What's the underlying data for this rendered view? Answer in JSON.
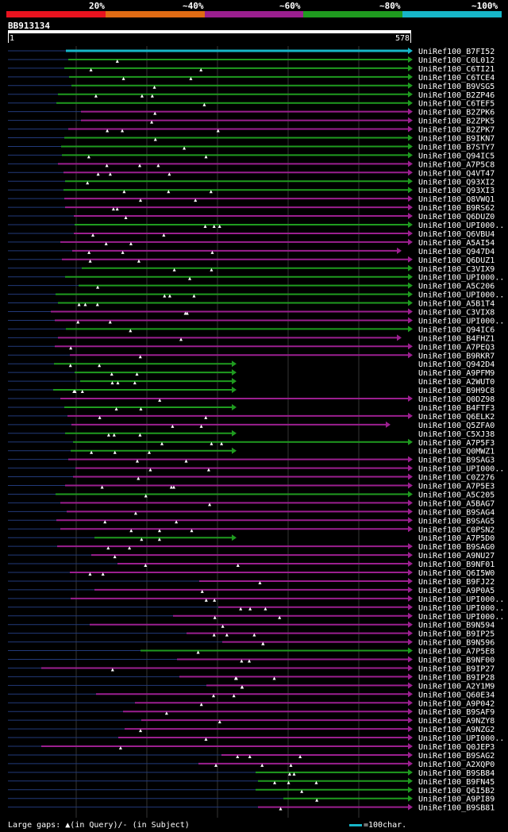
{
  "legend": {
    "labels": [
      "20%",
      "~40%",
      "~60%",
      "~80%",
      "~100%"
    ],
    "colors": [
      "#e8131f",
      "#e06b14",
      "#9b1f8f",
      "#1f9b1f",
      "#17b6c8"
    ]
  },
  "query": {
    "id": "BB913134",
    "start": "1",
    "end": "578"
  },
  "hits": [
    {
      "label": "UniRef100_B7FI52",
      "color": "cyan"
    },
    {
      "label": "UniRef100_C0L012",
      "color": "green"
    },
    {
      "label": "UniRef100_C6TI21",
      "color": "green"
    },
    {
      "label": "UniRef100_C6TCE4",
      "color": "green"
    },
    {
      "label": "UniRef100_B9VSG5",
      "color": "green"
    },
    {
      "label": "UniRef100_B2ZP46",
      "color": "green"
    },
    {
      "label": "UniRef100_C6TEF5",
      "color": "green"
    },
    {
      "label": "UniRef100_B2ZPK6",
      "color": "purple"
    },
    {
      "label": "UniRef100_B2ZPK5",
      "color": "purple"
    },
    {
      "label": "UniRef100_B2ZPK7",
      "color": "purple"
    },
    {
      "label": "UniRef100_B9IKN7",
      "color": "green"
    },
    {
      "label": "UniRef100_B7STY7",
      "color": "green"
    },
    {
      "label": "UniRef100_Q94IC5",
      "color": "green"
    },
    {
      "label": "UniRef100_A7P5C8",
      "color": "purple"
    },
    {
      "label": "UniRef100_Q4VT47",
      "color": "purple"
    },
    {
      "label": "UniRef100_Q93XI2",
      "color": "green"
    },
    {
      "label": "UniRef100_Q93XI3",
      "color": "green"
    },
    {
      "label": "UniRef100_Q8VWQ1",
      "color": "purple"
    },
    {
      "label": "UniRef100_B9RS62",
      "color": "purple"
    },
    {
      "label": "UniRef100_Q6DUZ0",
      "color": "purple"
    },
    {
      "label": "UniRef100_UPI000..",
      "color": "green"
    },
    {
      "label": "UniRef100_Q6VBU4",
      "color": "purple"
    },
    {
      "label": "UniRef100_A5AI54",
      "color": "purple"
    },
    {
      "label": "UniRef100_Q947D4",
      "color": "purple"
    },
    {
      "label": "UniRef100_Q6DUZ1",
      "color": "purple"
    },
    {
      "label": "UniRef100_C3VIX9",
      "color": "green"
    },
    {
      "label": "UniRef100_UPI000..",
      "color": "green"
    },
    {
      "label": "UniRef100_A5C206",
      "color": "green"
    },
    {
      "label": "UniRef100_UPI000..",
      "color": "green"
    },
    {
      "label": "UniRef100_A5B1T4",
      "color": "green"
    },
    {
      "label": "UniRef100_C3VIX8",
      "color": "purple"
    },
    {
      "label": "UniRef100_UPI000..",
      "color": "purple"
    },
    {
      "label": "UniRef100_Q94IC6",
      "color": "green"
    },
    {
      "label": "UniRef100_B4FHZ1",
      "color": "purple"
    },
    {
      "label": "UniRef100_A7PEQ3",
      "color": "purple"
    },
    {
      "label": "UniRef100_B9RKR7",
      "color": "purple"
    },
    {
      "label": "UniRef100_Q942D4",
      "color": "green"
    },
    {
      "label": "UniRef100_A9PFM9",
      "color": "green"
    },
    {
      "label": "UniRef100_A2WUT0",
      "color": "green"
    },
    {
      "label": "UniRef100_B9H9C8",
      "color": "green"
    },
    {
      "label": "UniRef100_Q0DZ98",
      "color": "purple"
    },
    {
      "label": "UniRef100_B4FTF3",
      "color": "green"
    },
    {
      "label": "UniRef100_Q6ELK2",
      "color": "purple"
    },
    {
      "label": "UniRef100_Q5ZFA0",
      "color": "purple"
    },
    {
      "label": "UniRef100_C5XJ38",
      "color": "green"
    },
    {
      "label": "UniRef100_A7P5F3",
      "color": "green"
    },
    {
      "label": "UniRef100_Q0MWZ1",
      "color": "green"
    },
    {
      "label": "UniRef100_B9SAG3",
      "color": "purple"
    },
    {
      "label": "UniRef100_UPI000..",
      "color": "purple"
    },
    {
      "label": "UniRef100_C0Z276",
      "color": "purple"
    },
    {
      "label": "UniRef100_A7P5E3",
      "color": "purple"
    },
    {
      "label": "UniRef100_A5C205",
      "color": "green"
    },
    {
      "label": "UniRef100_A5BAG7",
      "color": "purple"
    },
    {
      "label": "UniRef100_B9SAG4",
      "color": "purple"
    },
    {
      "label": "UniRef100_B9SAG5",
      "color": "purple"
    },
    {
      "label": "UniRef100_C0PSN2",
      "color": "purple"
    },
    {
      "label": "UniRef100_A7P5D0",
      "color": "green"
    },
    {
      "label": "UniRef100_B9SAG0",
      "color": "purple"
    },
    {
      "label": "UniRef100_A9NU27",
      "color": "purple"
    },
    {
      "label": "UniRef100_B9NF01",
      "color": "purple"
    },
    {
      "label": "UniRef100_Q6I5W0",
      "color": "purple"
    },
    {
      "label": "UniRef100_B9FJ22",
      "color": "purple"
    },
    {
      "label": "UniRef100_A9P0A5",
      "color": "purple"
    },
    {
      "label": "UniRef100_UPI000..",
      "color": "purple"
    },
    {
      "label": "UniRef100_UPI000..",
      "color": "purple"
    },
    {
      "label": "UniRef100_UPI000..",
      "color": "purple"
    },
    {
      "label": "UniRef100_B9N594",
      "color": "purple"
    },
    {
      "label": "UniRef100_B9IP25",
      "color": "purple"
    },
    {
      "label": "UniRef100_B9N596",
      "color": "purple"
    },
    {
      "label": "UniRef100_A7P5E8",
      "color": "green"
    },
    {
      "label": "UniRef100_B9NF00",
      "color": "purple"
    },
    {
      "label": "UniRef100_B9IP27",
      "color": "purple"
    },
    {
      "label": "UniRef100_B9IP28",
      "color": "purple"
    },
    {
      "label": "UniRef100_A2Y1M9",
      "color": "purple"
    },
    {
      "label": "UniRef100_Q60E34",
      "color": "purple"
    },
    {
      "label": "UniRef100_A9P042",
      "color": "purple"
    },
    {
      "label": "UniRef100_B9SAF9",
      "color": "purple"
    },
    {
      "label": "UniRef100_A9NZY8",
      "color": "purple"
    },
    {
      "label": "UniRef100_A9NZG2",
      "color": "purple"
    },
    {
      "label": "UniRef100_UPI000..",
      "color": "purple"
    },
    {
      "label": "UniRef100_Q0JEP3",
      "color": "purple"
    },
    {
      "label": "UniRef100_B9SAG2",
      "color": "purple"
    },
    {
      "label": "UniRef100_A2XQP0",
      "color": "purple"
    },
    {
      "label": "UniRef100_B9SB84",
      "color": "green"
    },
    {
      "label": "UniRef100_B9FN45",
      "color": "green"
    },
    {
      "label": "UniRef100_Q6I5B2",
      "color": "green"
    },
    {
      "label": "UniRef100_A9PI89",
      "color": "green"
    },
    {
      "label": "UniRef100_B9SB81",
      "color": "purple"
    }
  ],
  "footer": {
    "large_gaps": "Large gaps:",
    "query_gap": "(in Query)/",
    "subject_gap": "- (in Subject)",
    "scale": "=100char."
  }
}
